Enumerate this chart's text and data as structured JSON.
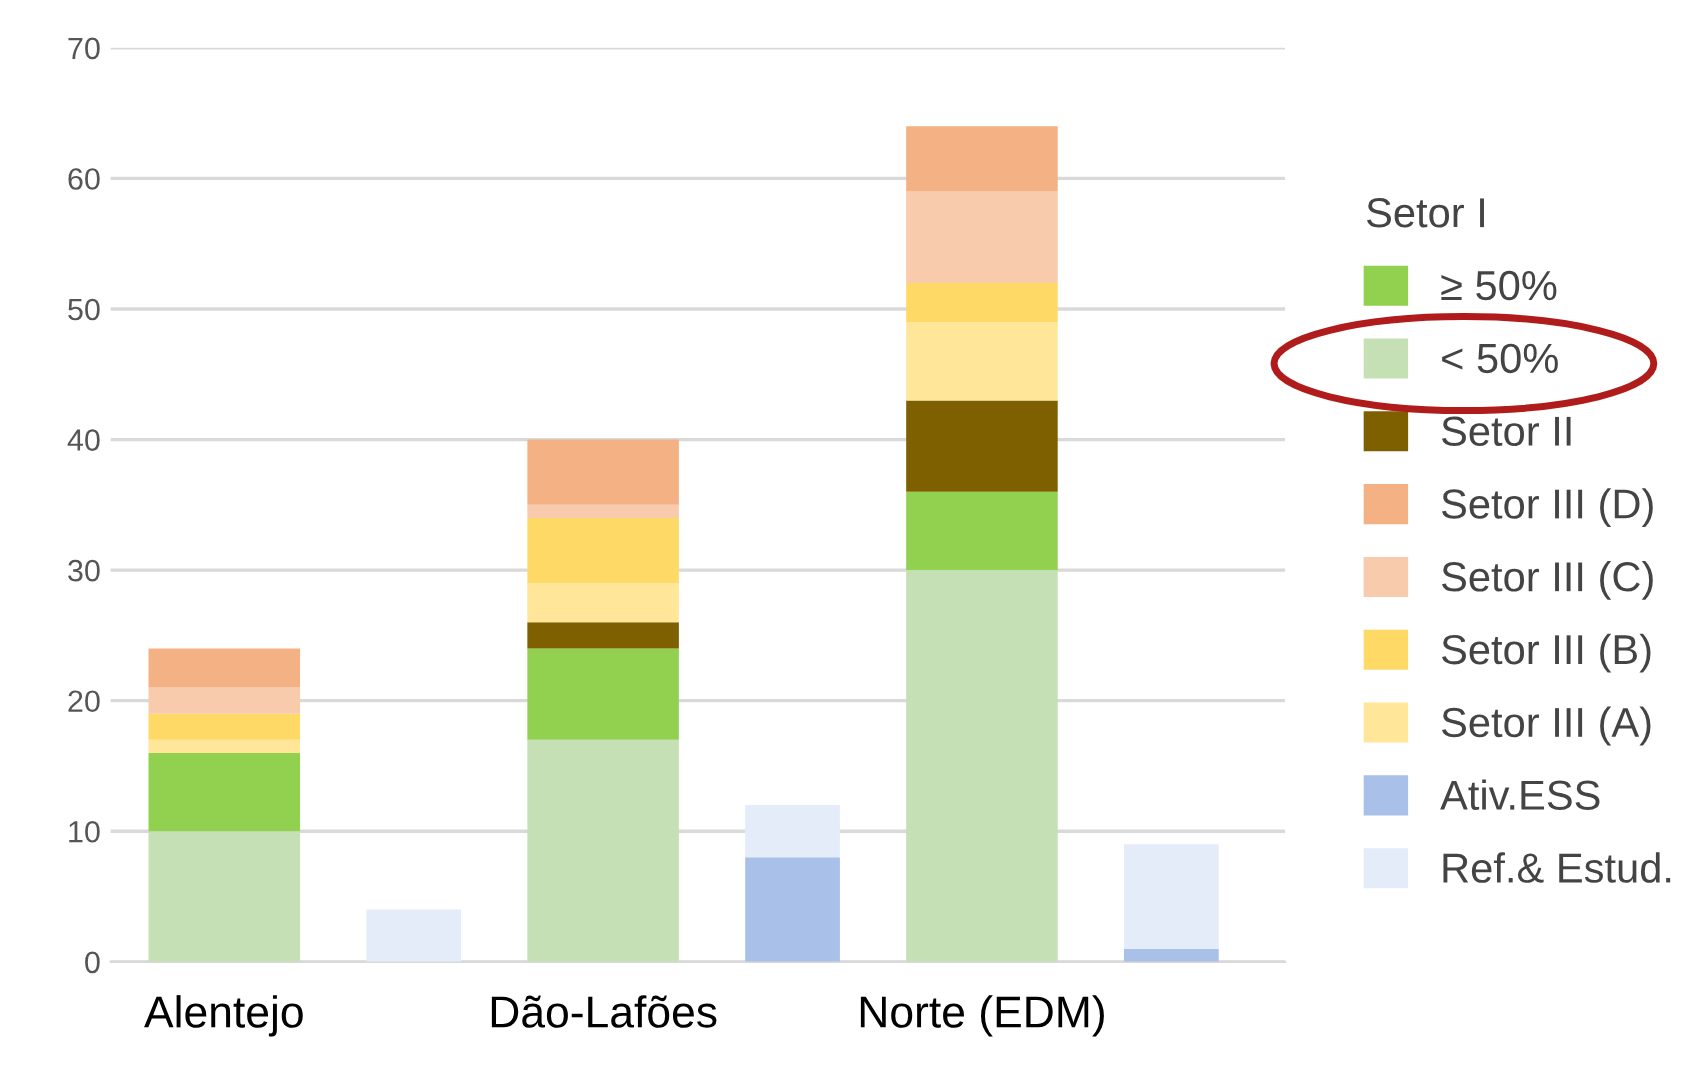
{
  "chart_data": {
    "type": "bar",
    "stacked": true,
    "categories": [
      "Alentejo",
      null,
      "Dão-Lafões",
      null,
      "Norte (EDM)",
      null
    ],
    "series": [
      {
        "name": "< 50%",
        "color": "#c5e0b4",
        "values": [
          10,
          null,
          17,
          null,
          30,
          null
        ]
      },
      {
        "name": "≥ 50%",
        "color": "#92d050",
        "values": [
          6,
          null,
          7,
          null,
          6,
          null
        ]
      },
      {
        "name": "Setor II",
        "color": "#7f6000",
        "values": [
          0,
          null,
          2,
          null,
          7,
          null
        ]
      },
      {
        "name": "Setor III (A)",
        "color": "#ffe699",
        "values": [
          1,
          null,
          3,
          null,
          6,
          null
        ]
      },
      {
        "name": "Setor III (B)",
        "color": "#ffd966",
        "values": [
          2,
          null,
          5,
          null,
          3,
          null
        ]
      },
      {
        "name": "Setor III (C)",
        "color": "#f8cbad",
        "values": [
          2,
          null,
          1,
          null,
          7,
          null
        ]
      },
      {
        "name": "Setor III (D)",
        "color": "#f4b183",
        "values": [
          3,
          null,
          5,
          null,
          5,
          null
        ]
      },
      {
        "name": "Ativ.ESS",
        "color": "#a9c0e8",
        "values": [
          null,
          null,
          null,
          8,
          null,
          1
        ]
      },
      {
        "name": "Ref.& Estud.",
        "color": "#e4ecfa",
        "values": [
          null,
          4,
          null,
          4,
          null,
          8
        ]
      }
    ],
    "ylim": [
      0,
      70
    ],
    "yticks": [
      0,
      10,
      20,
      30,
      40,
      50,
      60,
      70
    ],
    "grid": "y",
    "legend": "right",
    "legend_title": "Setor I"
  }
}
